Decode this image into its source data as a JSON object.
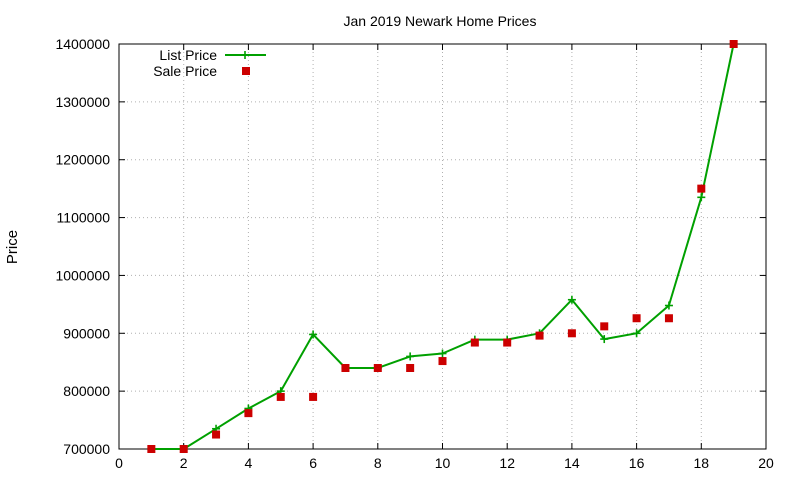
{
  "chart_data": {
    "type": "line",
    "title": "Jan 2019 Newark Home Prices",
    "xlabel": "",
    "ylabel": "Price",
    "xlim": [
      0,
      20
    ],
    "ylim": [
      700000,
      1400000
    ],
    "xticks": [
      0,
      2,
      4,
      6,
      8,
      10,
      12,
      14,
      16,
      18,
      20
    ],
    "yticks": [
      700000,
      800000,
      900000,
      1000000,
      1100000,
      1200000,
      1300000,
      1400000
    ],
    "grid": true,
    "legend_position": "top-left",
    "series": [
      {
        "name": "List Price",
        "style": "line-with-plus-markers",
        "color": "#00a000",
        "x": [
          1,
          2,
          3,
          4,
          5,
          6,
          7,
          8,
          9,
          10,
          11,
          12,
          13,
          14,
          15,
          16,
          17,
          18,
          19
        ],
        "y": [
          700000,
          700000,
          735000,
          770000,
          800000,
          898000,
          840000,
          840000,
          860000,
          865000,
          889000,
          889000,
          900000,
          958000,
          890000,
          900000,
          948000,
          1135000,
          1400000
        ]
      },
      {
        "name": "Sale Price",
        "style": "square-markers",
        "color": "#cc0000",
        "x": [
          1,
          2,
          3,
          4,
          5,
          6,
          7,
          8,
          9,
          10,
          11,
          12,
          13,
          14,
          15,
          16,
          17,
          18,
          19
        ],
        "y": [
          700000,
          700000,
          725000,
          762000,
          790000,
          790000,
          840000,
          840000,
          840000,
          852000,
          884000,
          884000,
          896000,
          900000,
          912000,
          926000,
          926000,
          1150000,
          1400000
        ]
      }
    ]
  }
}
